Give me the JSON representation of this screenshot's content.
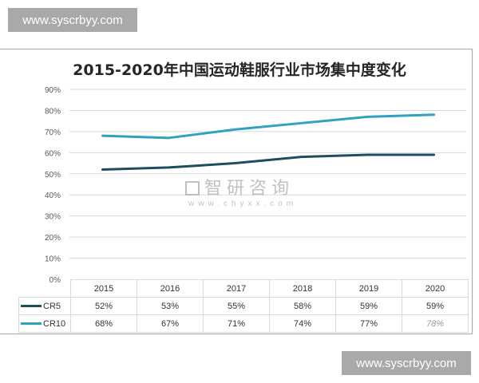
{
  "watermarks": {
    "top": "www.syscrbyy.com",
    "bottom": "www.syscrbyy.com",
    "center_cn": "智研咨询",
    "center_url": "www.chyxx.com"
  },
  "chart": {
    "title": "2015-2020年中国运动鞋服行业市场集中度变化",
    "y_ticks": [
      "90%",
      "80%",
      "70%",
      "60%",
      "50%",
      "40%",
      "30%",
      "20%",
      "10%",
      "0%"
    ],
    "categories": [
      "2015",
      "2016",
      "2017",
      "2018",
      "2019",
      "2020"
    ],
    "series": [
      {
        "name": "CR5",
        "color": "#1d4e5f",
        "display": [
          "52%",
          "53%",
          "55%",
          "58%",
          "59%",
          "59%"
        ]
      },
      {
        "name": "CR10",
        "color": "#2fa3bf",
        "display": [
          "68%",
          "67%",
          "71%",
          "74%",
          "77%",
          "78%"
        ]
      }
    ]
  },
  "chart_data": {
    "type": "line",
    "title": "2015-2020年中国运动鞋服行业市场集中度变化",
    "xlabel": "",
    "ylabel": "",
    "categories": [
      "2015",
      "2016",
      "2017",
      "2018",
      "2019",
      "2020"
    ],
    "series": [
      {
        "name": "CR5",
        "values": [
          52,
          53,
          55,
          58,
          59,
          59
        ],
        "color": "#1d4e5f"
      },
      {
        "name": "CR10",
        "values": [
          68,
          67,
          71,
          74,
          77,
          78
        ],
        "color": "#2fa3bf"
      }
    ],
    "ylim": [
      0,
      90
    ],
    "y_unit": "%",
    "grid": true,
    "legend_position": "data-table-left",
    "data_table": true
  }
}
